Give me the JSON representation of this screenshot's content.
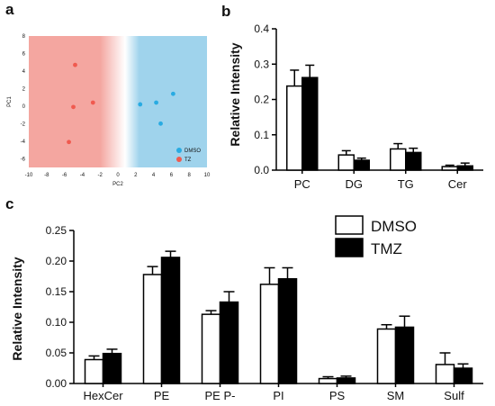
{
  "panels": {
    "a": "a",
    "b": "b",
    "c": "c"
  },
  "chart_data": [
    {
      "type": "scatter",
      "panel": "a",
      "xlabel": "PC2",
      "ylabel": "PC1",
      "xlim": [
        -10,
        10
      ],
      "ylim": [
        -7,
        8
      ],
      "xticks": [
        "-10",
        "-8",
        "-6",
        "-4",
        "-2",
        "0",
        "2",
        "4",
        "6",
        "8",
        "10"
      ],
      "yticks": [
        "8",
        "6",
        "4",
        "2",
        "0",
        "-2",
        "-4",
        "-6"
      ],
      "background": {
        "left_color": "#f4a6a0",
        "right_color": "#9fd3ec"
      },
      "legend_position": "bottom-right",
      "series": [
        {
          "name": "DMSO",
          "color": "#29abe2",
          "points": [
            [
              2.5,
              0.2
            ],
            [
              4.3,
              0.4
            ],
            [
              4.8,
              -2.0
            ],
            [
              6.2,
              1.4
            ]
          ]
        },
        {
          "name": "TZ",
          "color": "#f05a4f",
          "points": [
            [
              -4.8,
              4.7
            ],
            [
              -5.0,
              -0.1
            ],
            [
              -2.8,
              0.4
            ],
            [
              -5.5,
              -4.1
            ]
          ]
        }
      ]
    },
    {
      "type": "bar",
      "panel": "b",
      "ylabel": "Relative Intensity",
      "ylim": [
        0,
        0.4
      ],
      "yticks": [
        "0.0",
        "0.1",
        "0.2",
        "0.3",
        "0.4"
      ],
      "categories": [
        "PC",
        "DG",
        "TG",
        "Cer"
      ],
      "series": [
        {
          "name": "DMSO",
          "fill": "#ffffff",
          "values": [
            0.238,
            0.043,
            0.06,
            0.01
          ],
          "errors": [
            0.045,
            0.012,
            0.015,
            0.004
          ]
        },
        {
          "name": "TMZ",
          "fill": "#000000",
          "values": [
            0.262,
            0.028,
            0.05,
            0.012
          ],
          "errors": [
            0.035,
            0.006,
            0.012,
            0.008
          ]
        }
      ]
    },
    {
      "type": "bar",
      "panel": "c",
      "ylabel": "Relative Intensity",
      "ylim": [
        0,
        0.25
      ],
      "yticks": [
        "0.00",
        "0.05",
        "0.10",
        "0.15",
        "0.20",
        "0.25"
      ],
      "categories": [
        "HexCer",
        "PE",
        "PE P-",
        "PI",
        "PS",
        "SM",
        "Sulf"
      ],
      "legend_position": "top-right",
      "series": [
        {
          "name": "DMSO",
          "fill": "#ffffff",
          "values": [
            0.039,
            0.178,
            0.113,
            0.162,
            0.008,
            0.089,
            0.031
          ],
          "errors": [
            0.006,
            0.013,
            0.006,
            0.027,
            0.003,
            0.007,
            0.019
          ]
        },
        {
          "name": "TMZ",
          "fill": "#000000",
          "values": [
            0.049,
            0.206,
            0.133,
            0.171,
            0.009,
            0.092,
            0.025
          ],
          "errors": [
            0.007,
            0.01,
            0.017,
            0.018,
            0.003,
            0.018,
            0.007
          ]
        }
      ]
    }
  ]
}
